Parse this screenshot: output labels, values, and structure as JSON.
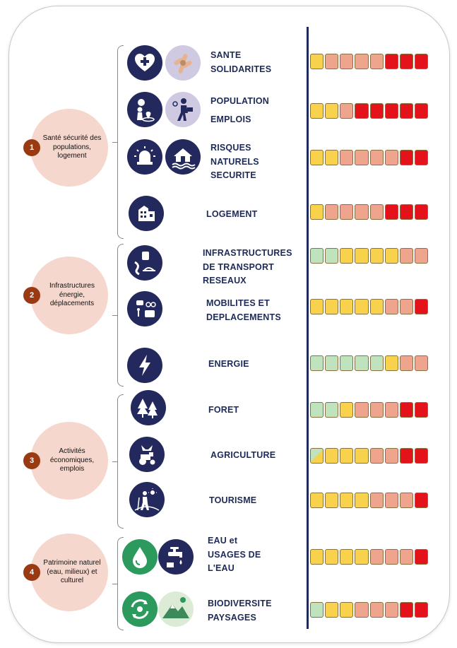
{
  "groups": [
    {
      "number": "1",
      "label": "Santé sécurité des populations, logement"
    },
    {
      "number": "2",
      "label": "Infrastructures énergie, déplacements"
    },
    {
      "number": "3",
      "label": "Activités économiques, emplois"
    },
    {
      "number": "4",
      "label": "Patrimoine naturel (eau, milieux) et culturel"
    }
  ],
  "rows": [
    {
      "lines": [
        "SANTE",
        "SOLIDARITES"
      ],
      "icons": [
        "health-heart-icon",
        "solidarity-hands-icon"
      ],
      "cells": [
        "yellow",
        "salmon",
        "salmon",
        "salmon",
        "salmon",
        "red",
        "red",
        "red"
      ]
    },
    {
      "lines": [
        "POPULATION",
        "EMPLOIS"
      ],
      "icons": [
        "population-location-icon",
        "employment-worker-icon"
      ],
      "cells": [
        "yellow",
        "yellow",
        "salmon",
        "red",
        "red",
        "red",
        "red",
        "red"
      ]
    },
    {
      "lines": [
        "RISQUES",
        "NATURELS",
        "SECURITE"
      ],
      "icons": [
        "alarm-siren-icon",
        "flooded-house-icon"
      ],
      "cells": [
        "yellow",
        "yellow",
        "salmon",
        "salmon",
        "salmon",
        "salmon",
        "red",
        "red"
      ]
    },
    {
      "lines": [
        "LOGEMENT"
      ],
      "icons": [
        "housing-buildings-icon"
      ],
      "cells": [
        "yellow",
        "salmon",
        "salmon",
        "salmon",
        "salmon",
        "red",
        "red",
        "red"
      ]
    },
    {
      "lines": [
        "INFRASTRUCTURES",
        "DE TRANSPORT",
        "RESEAUX"
      ],
      "icons": [
        "transport-infrastructure-icon"
      ],
      "cells": [
        "green",
        "green",
        "yellow",
        "yellow",
        "yellow",
        "yellow",
        "salmon",
        "salmon"
      ]
    },
    {
      "lines": [
        "MOBILITES ET",
        "DEPLACEMENTS"
      ],
      "icons": [
        "mobility-transport-icon"
      ],
      "cells": [
        "yellow",
        "yellow",
        "yellow",
        "yellow",
        "yellow",
        "salmon",
        "salmon",
        "red"
      ]
    },
    {
      "lines": [
        "ENERGIE"
      ],
      "icons": [
        "energy-bolt-icon"
      ],
      "cells": [
        "green",
        "green",
        "green",
        "green",
        "green",
        "yellow",
        "salmon",
        "salmon"
      ]
    },
    {
      "lines": [
        "FORET"
      ],
      "icons": [
        "forest-trees-icon"
      ],
      "cells": [
        "green",
        "green",
        "yellow",
        "salmon",
        "salmon",
        "salmon",
        "red",
        "red"
      ]
    },
    {
      "lines": [
        "AGRICULTURE"
      ],
      "icons": [
        "agriculture-tractor-icon"
      ],
      "cells": [
        "green-yellow",
        "yellow",
        "yellow",
        "yellow",
        "salmon",
        "salmon",
        "red",
        "red"
      ]
    },
    {
      "lines": [
        "TOURISME"
      ],
      "icons": [
        "tourism-hiker-icon"
      ],
      "cells": [
        "yellow",
        "yellow",
        "yellow",
        "yellow",
        "salmon",
        "salmon",
        "salmon",
        "red"
      ]
    },
    {
      "lines": [
        "EAU et",
        "USAGES DE",
        "L'EAU"
      ],
      "icons": [
        "water-drop-icon",
        "water-tap-icon"
      ],
      "cells": [
        "yellow",
        "yellow",
        "yellow",
        "yellow",
        "salmon",
        "salmon",
        "salmon",
        "red"
      ]
    },
    {
      "lines": [
        "BIODIVERSITE",
        "PAYSAGES"
      ],
      "icons": [
        "biodiversity-cycle-icon",
        "landscape-mountain-icon"
      ],
      "cells": [
        "green",
        "yellow",
        "yellow",
        "salmon",
        "salmon",
        "salmon",
        "red",
        "red"
      ]
    }
  ],
  "colors": {
    "yellow": "#f9d24d",
    "salmon": "#efa48e",
    "red": "#e4131b",
    "green": "#bfe3bd",
    "navy": "#23295c",
    "brown_badge": "#9a3a12",
    "group_circle": "#f6d7cd"
  }
}
